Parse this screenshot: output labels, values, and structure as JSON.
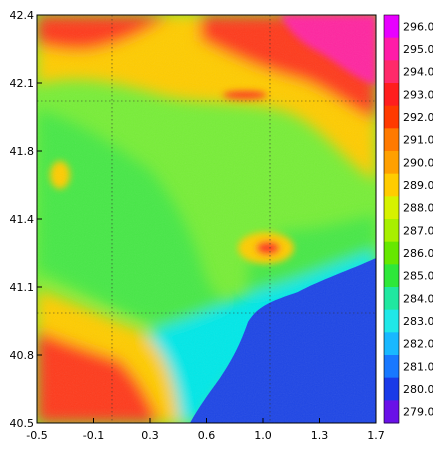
{
  "map": {
    "x_ticks": [
      "-0.5",
      "-0.1",
      "0.3",
      "0.6",
      "1.0",
      "1.3",
      "1.7"
    ],
    "y_ticks": [
      "42.4",
      "42.1",
      "41.8",
      "41.4",
      "41.1",
      "40.8",
      "40.5"
    ],
    "x_range": [
      -0.5,
      1.7
    ],
    "y_range": [
      40.5,
      42.4
    ],
    "grid": true
  },
  "colorbar": {
    "labels": [
      "296.0",
      "295.0",
      "294.0",
      "293.0",
      "292.0",
      "291.0",
      "290.0",
      "289.0",
      "288.0",
      "287.0",
      "286.0",
      "285.0",
      "284.0",
      "283.0",
      "282.0",
      "281.0",
      "280.0",
      "279.0"
    ],
    "colors": [
      "#e800ff",
      "#ff1ca8",
      "#ff2a6a",
      "#ff1e1e",
      "#ff3a00",
      "#ff7a00",
      "#ffa000",
      "#ffcc00",
      "#d6f200",
      "#a8f000",
      "#66e800",
      "#2ee83a",
      "#20e8a0",
      "#20e8e8",
      "#18b8ff",
      "#1878ff",
      "#1a3ae8",
      "#6a10e8"
    ]
  },
  "colors": {
    "sea": "#1e46e6",
    "coast": "#00e8e8",
    "lowland": "#46e846",
    "plain": "#78ee38",
    "hills": "#ffcc00",
    "mountains": "#ff3a1a",
    "peaks": "#ff28a0"
  }
}
